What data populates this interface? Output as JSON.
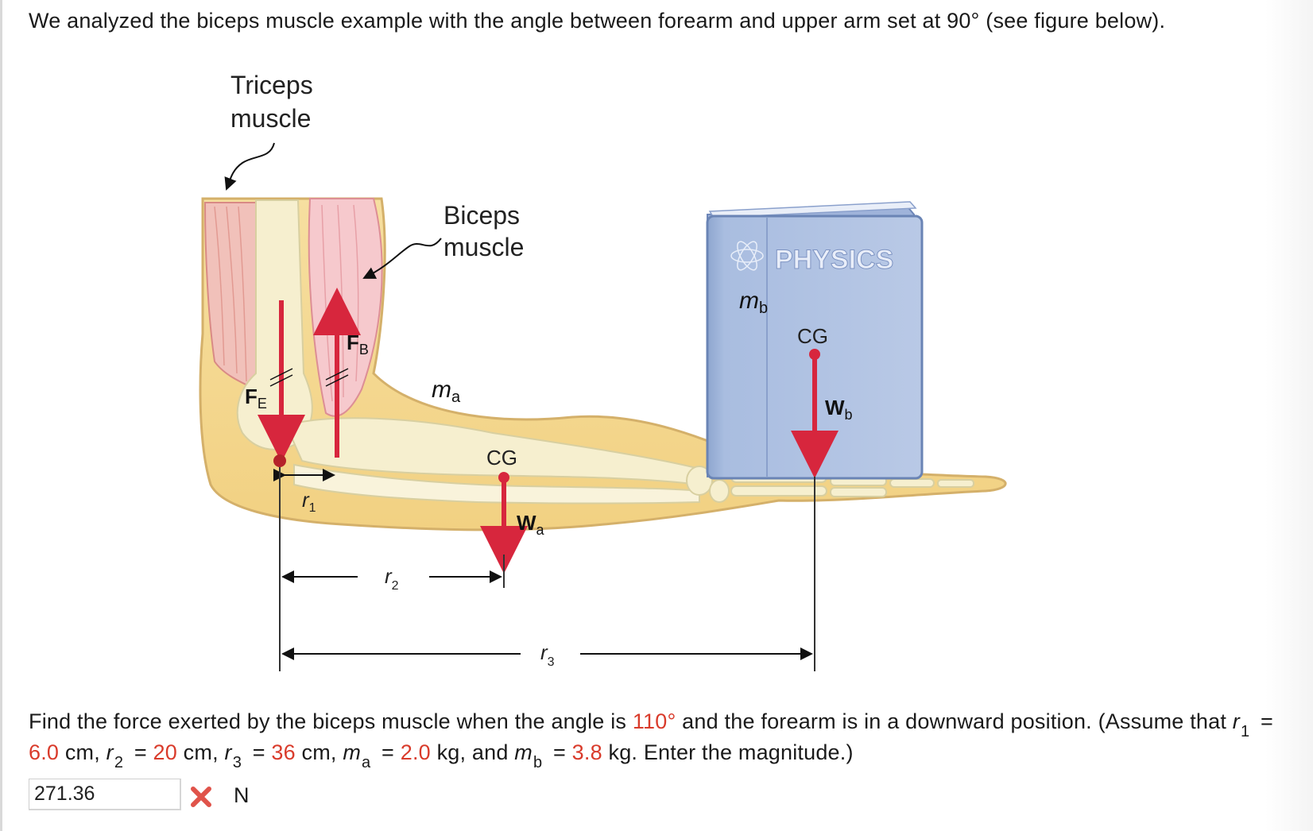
{
  "intro_text": "We analyzed the biceps muscle example with the angle between forearm and upper arm set at 90° (see figure below).",
  "figure": {
    "triceps_label_1": "Triceps",
    "triceps_label_2": "muscle",
    "biceps_label_1": "Biceps",
    "biceps_label_2": "muscle",
    "book_title": "PHYSICS",
    "mb_label": "m",
    "mb_sub": "b",
    "book_cg": "CG",
    "wb_label": "W",
    "wb_sub": "b",
    "ma_label": "m",
    "ma_sub": "a",
    "arm_cg": "CG",
    "wa_label": "W",
    "wa_sub": "a",
    "fb_label": "F",
    "fb_sub": "B",
    "fe_label": "F",
    "fe_sub": "E",
    "r1_label": "r",
    "r1_sub": "1",
    "r2_label": "r",
    "r2_sub": "2",
    "r3_label": "r",
    "r3_sub": "3",
    "arrow_color": "#d7263d"
  },
  "question": {
    "part1": "Find the force exerted by the biceps muscle when the angle is ",
    "angle": "110°",
    "part2": " and the forearm is in a downward position. (Assume that ",
    "r1_var": "r",
    "r1_sub": "1",
    "eq1": " = ",
    "r1_val": "6.0",
    "unit_cm1": " cm, ",
    "r2_var": "r",
    "r2_sub": "2",
    "eq2": " = ",
    "r2_val": "20",
    "unit_cm2": " cm, ",
    "r3_var": "r",
    "r3_sub": "3",
    "eq3": " = ",
    "r3_val": "36",
    "unit_cm3": " cm, ",
    "ma_var": "m",
    "ma_sub": "a",
    "eq4": " = ",
    "ma_val": "2.0",
    "unit_kg1": " kg, and ",
    "mb_var": "m",
    "mb_sub": "b",
    "eq5": " = ",
    "mb_val": "3.8",
    "tail": " kg. Enter the magnitude.)"
  },
  "answer": {
    "value": "271.36",
    "unit": "N",
    "status": "incorrect",
    "status_color": "#e0534a"
  }
}
